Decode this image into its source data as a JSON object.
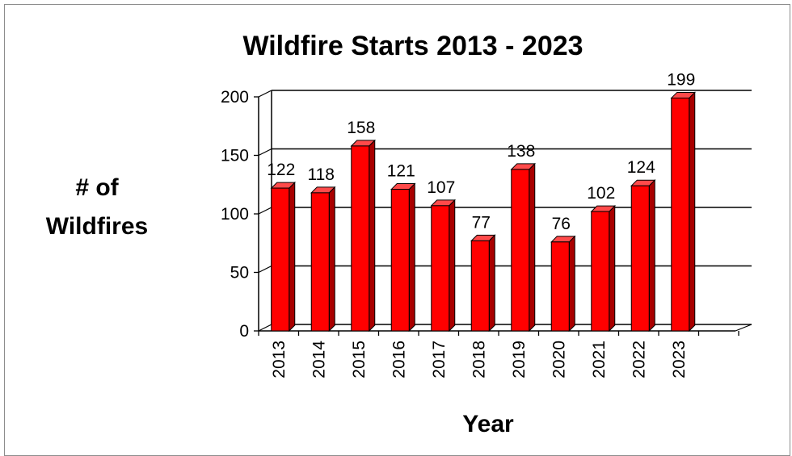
{
  "chart_data": {
    "type": "bar",
    "title": "Wildfire Starts 2013 - 2023",
    "xlabel": "Year",
    "ylabel_lines": [
      "# of",
      "Wildfires"
    ],
    "categories": [
      "2013",
      "2014",
      "2015",
      "2016",
      "2017",
      "2018",
      "2019",
      "2020",
      "2021",
      "2022",
      "2023"
    ],
    "values": [
      122,
      118,
      158,
      121,
      107,
      77,
      138,
      76,
      102,
      124,
      199
    ],
    "ylim": [
      0,
      200
    ],
    "yticks": [
      "0",
      "50",
      "100",
      "150",
      "200"
    ],
    "grid": true,
    "legend": false,
    "style": "3d-column",
    "colors": {
      "bar_front": "#ff0000",
      "bar_side": "#a80000",
      "bar_top": "#ff4a4a",
      "outline": "#000000"
    }
  }
}
